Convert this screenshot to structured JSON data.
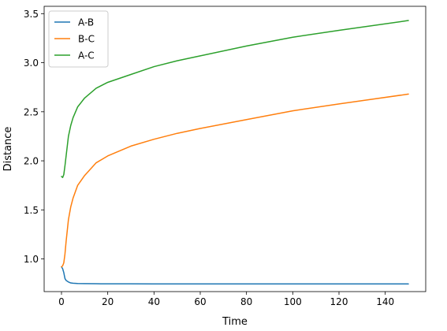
{
  "chart_data": {
    "type": "line",
    "title": "",
    "xlabel": "Time",
    "ylabel": "Distance",
    "xlim": [
      -7.5,
      157.5
    ],
    "ylim": [
      0.667,
      3.575
    ],
    "xticks": [
      0,
      20,
      40,
      60,
      80,
      100,
      120,
      140
    ],
    "yticks": [
      1.0,
      1.5,
      2.0,
      2.5,
      3.0,
      3.5
    ],
    "xtick_labels": [
      "0",
      "20",
      "40",
      "60",
      "80",
      "100",
      "120",
      "140"
    ],
    "ytick_labels": [
      "1.0",
      "1.5",
      "2.0",
      "2.5",
      "3.0",
      "3.5"
    ],
    "grid": false,
    "legend_position": "top-left",
    "series": [
      {
        "name": "A-B",
        "color": "#1f77b4",
        "x": [
          0,
          0.5,
          1,
          1.5,
          2,
          3,
          4,
          5,
          7,
          10,
          15,
          20,
          30,
          40,
          60,
          80,
          100,
          120,
          150
        ],
        "y": [
          0.92,
          0.9,
          0.86,
          0.8,
          0.78,
          0.765,
          0.755,
          0.752,
          0.749,
          0.748,
          0.747,
          0.746,
          0.746,
          0.745,
          0.745,
          0.745,
          0.745,
          0.745,
          0.745
        ]
      },
      {
        "name": "B-C",
        "color": "#ff7f0e",
        "x": [
          0,
          0.5,
          1,
          1.5,
          2,
          3,
          4,
          5,
          7,
          10,
          15,
          20,
          30,
          40,
          50,
          60,
          80,
          100,
          120,
          150
        ],
        "y": [
          0.92,
          0.93,
          0.96,
          1.05,
          1.18,
          1.4,
          1.53,
          1.62,
          1.75,
          1.85,
          1.98,
          2.05,
          2.15,
          2.22,
          2.28,
          2.33,
          2.42,
          2.51,
          2.58,
          2.68
        ]
      },
      {
        "name": "A-C",
        "color": "#2ca02c",
        "x": [
          0,
          0.5,
          1,
          1.5,
          2,
          3,
          4,
          5,
          7,
          10,
          15,
          20,
          30,
          40,
          50,
          60,
          80,
          100,
          120,
          150
        ],
        "y": [
          1.84,
          1.83,
          1.86,
          1.95,
          2.05,
          2.25,
          2.36,
          2.44,
          2.55,
          2.64,
          2.74,
          2.8,
          2.88,
          2.96,
          3.02,
          3.07,
          3.17,
          3.26,
          3.33,
          3.43
        ]
      }
    ]
  }
}
